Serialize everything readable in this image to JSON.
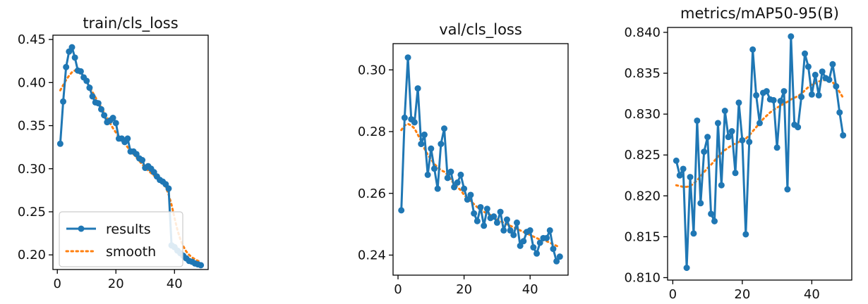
{
  "colors": {
    "results": "#1f77b4",
    "smooth": "#ff7f0e",
    "axes": "#000000",
    "legend_border": "#cccccc"
  },
  "chart_data": [
    {
      "type": "line",
      "title": "train/cls_loss",
      "xlabel": "",
      "ylabel": "",
      "xlim": [
        -1.5,
        51.5
      ],
      "ylim": [
        0.183,
        0.455
      ],
      "xticks": [
        0,
        20,
        40
      ],
      "xtick_labels": [
        "0",
        "20",
        "40"
      ],
      "yticks": [
        0.2,
        0.25,
        0.3,
        0.35,
        0.4,
        0.45
      ],
      "ytick_labels": [
        "0.20",
        "0.25",
        "0.30",
        "0.35",
        "0.40",
        "0.45"
      ],
      "grid": false,
      "legend": {
        "placement": "bottom-left",
        "entries": [
          "results",
          "smooth"
        ]
      },
      "series": [
        {
          "name": "results",
          "style": "line-marker",
          "x": [
            1,
            2,
            3,
            4,
            5,
            6,
            7,
            8,
            9,
            10,
            11,
            12,
            13,
            14,
            15,
            16,
            17,
            18,
            19,
            20,
            21,
            22,
            23,
            24,
            25,
            26,
            27,
            28,
            29,
            30,
            31,
            32,
            33,
            34,
            35,
            36,
            37,
            38,
            39,
            40,
            41,
            42,
            43,
            44,
            45,
            46,
            47,
            48,
            49
          ],
          "y": [
            0.329,
            0.378,
            0.418,
            0.436,
            0.441,
            0.429,
            0.414,
            0.413,
            0.406,
            0.402,
            0.394,
            0.384,
            0.377,
            0.376,
            0.369,
            0.362,
            0.354,
            0.356,
            0.359,
            0.353,
            0.335,
            0.335,
            0.331,
            0.335,
            0.32,
            0.32,
            0.317,
            0.312,
            0.31,
            0.301,
            0.303,
            0.3,
            0.296,
            0.291,
            0.287,
            0.285,
            0.282,
            0.277,
            0.211,
            0.209,
            0.205,
            0.202,
            0.199,
            0.196,
            0.193,
            0.192,
            0.19,
            0.189,
            0.188
          ]
        },
        {
          "name": "smooth",
          "style": "dotted",
          "x": [
            1,
            2,
            3,
            4,
            5,
            6,
            7,
            8,
            9,
            10,
            11,
            12,
            13,
            14,
            15,
            16,
            17,
            18,
            19,
            20,
            21,
            22,
            23,
            24,
            25,
            26,
            27,
            28,
            29,
            30,
            31,
            32,
            33,
            34,
            35,
            36,
            37,
            38,
            39,
            40,
            41,
            42,
            43,
            44,
            45,
            46,
            47,
            48,
            49
          ],
          "y": [
            0.391,
            0.397,
            0.403,
            0.408,
            0.412,
            0.414,
            0.413,
            0.41,
            0.406,
            0.401,
            0.395,
            0.389,
            0.383,
            0.377,
            0.371,
            0.365,
            0.359,
            0.353,
            0.347,
            0.342,
            0.337,
            0.333,
            0.329,
            0.325,
            0.321,
            0.317,
            0.313,
            0.309,
            0.305,
            0.301,
            0.298,
            0.295,
            0.292,
            0.289,
            0.286,
            0.283,
            0.279,
            0.27,
            0.258,
            0.243,
            0.229,
            0.218,
            0.21,
            0.204,
            0.2,
            0.197,
            0.195,
            0.193,
            0.192
          ]
        }
      ]
    },
    {
      "type": "line",
      "title": "val/cls_loss",
      "xlabel": "",
      "ylabel": "",
      "xlim": [
        -1.5,
        51.5
      ],
      "ylim": [
        0.2335,
        0.3085
      ],
      "xticks": [
        0,
        20,
        40
      ],
      "xtick_labels": [
        "0",
        "20",
        "40"
      ],
      "yticks": [
        0.24,
        0.26,
        0.28,
        0.3
      ],
      "ytick_labels": [
        "0.24",
        "0.26",
        "0.28",
        "0.30"
      ],
      "grid": false,
      "series": [
        {
          "name": "results",
          "style": "line-marker",
          "x": [
            1,
            2,
            3,
            4,
            5,
            6,
            7,
            8,
            9,
            10,
            11,
            12,
            13,
            14,
            15,
            16,
            17,
            18,
            19,
            20,
            21,
            22,
            23,
            24,
            25,
            26,
            27,
            28,
            29,
            30,
            31,
            32,
            33,
            34,
            35,
            36,
            37,
            38,
            39,
            40,
            41,
            42,
            43,
            44,
            45,
            46,
            47,
            48,
            49
          ],
          "y": [
            0.2545,
            0.2845,
            0.304,
            0.284,
            0.283,
            0.294,
            0.276,
            0.279,
            0.266,
            0.2745,
            0.268,
            0.2615,
            0.276,
            0.281,
            0.265,
            0.267,
            0.262,
            0.2635,
            0.266,
            0.2615,
            0.258,
            0.2595,
            0.2535,
            0.251,
            0.2555,
            0.2495,
            0.255,
            0.252,
            0.2525,
            0.2505,
            0.254,
            0.248,
            0.2515,
            0.248,
            0.2465,
            0.2505,
            0.243,
            0.2445,
            0.2475,
            0.248,
            0.2425,
            0.2405,
            0.244,
            0.2455,
            0.2455,
            0.248,
            0.242,
            0.238,
            0.2395
          ]
        },
        {
          "name": "smooth",
          "style": "dotted",
          "x": [
            1,
            2,
            3,
            4,
            5,
            6,
            7,
            8,
            9,
            10,
            11,
            12,
            13,
            14,
            15,
            16,
            17,
            18,
            19,
            20,
            21,
            22,
            23,
            24,
            25,
            26,
            27,
            28,
            29,
            30,
            31,
            32,
            33,
            34,
            35,
            36,
            37,
            38,
            39,
            40,
            41,
            42,
            43,
            44,
            45,
            46,
            47,
            48,
            49
          ],
          "y": [
            0.2805,
            0.282,
            0.2825,
            0.282,
            0.281,
            0.279,
            0.277,
            0.2745,
            0.2725,
            0.271,
            0.2695,
            0.2685,
            0.2675,
            0.267,
            0.266,
            0.2645,
            0.263,
            0.262,
            0.261,
            0.2595,
            0.2585,
            0.2575,
            0.2565,
            0.2555,
            0.255,
            0.254,
            0.2535,
            0.253,
            0.2525,
            0.2515,
            0.251,
            0.2505,
            0.25,
            0.2495,
            0.249,
            0.2485,
            0.248,
            0.2475,
            0.247,
            0.2465,
            0.246,
            0.2455,
            0.245,
            0.2448,
            0.2445,
            0.244,
            0.2435,
            0.243,
            0.2425
          ]
        }
      ]
    },
    {
      "type": "line",
      "title": "metrics/mAP50-95(B)",
      "xlabel": "",
      "ylabel": "",
      "xlim": [
        -1.5,
        51.5
      ],
      "ylim": [
        0.8097,
        0.8406
      ],
      "xticks": [
        0,
        20,
        40
      ],
      "xtick_labels": [
        "0",
        "20",
        "40"
      ],
      "yticks": [
        0.81,
        0.815,
        0.82,
        0.825,
        0.83,
        0.835,
        0.84
      ],
      "ytick_labels": [
        "0.810",
        "0.815",
        "0.820",
        "0.825",
        "0.830",
        "0.835",
        "0.840"
      ],
      "grid": false,
      "series": [
        {
          "name": "results",
          "style": "line-marker",
          "x": [
            1,
            2,
            3,
            4,
            5,
            6,
            7,
            8,
            9,
            10,
            11,
            12,
            13,
            14,
            15,
            16,
            17,
            18,
            19,
            20,
            21,
            22,
            23,
            24,
            25,
            26,
            27,
            28,
            29,
            30,
            31,
            32,
            33,
            34,
            35,
            36,
            37,
            38,
            39,
            40,
            41,
            42,
            43,
            44,
            45,
            46,
            47,
            48,
            49
          ],
          "y": [
            0.8243,
            0.8225,
            0.8233,
            0.8112,
            0.8223,
            0.8154,
            0.8292,
            0.8191,
            0.8254,
            0.8272,
            0.8178,
            0.8169,
            0.8289,
            0.8213,
            0.8304,
            0.8272,
            0.8279,
            0.8228,
            0.8314,
            0.8268,
            0.8153,
            0.8266,
            0.8379,
            0.8323,
            0.8289,
            0.8326,
            0.8328,
            0.8318,
            0.8317,
            0.8259,
            0.8316,
            0.8328,
            0.8208,
            0.8395,
            0.8287,
            0.8284,
            0.8321,
            0.8374,
            0.8358,
            0.8324,
            0.8348,
            0.8323,
            0.8352,
            0.8344,
            0.8342,
            0.8361,
            0.8334,
            0.8302,
            0.8274
          ]
        },
        {
          "name": "smooth",
          "style": "dotted",
          "x": [
            1,
            2,
            3,
            4,
            5,
            6,
            7,
            8,
            9,
            10,
            11,
            12,
            13,
            14,
            15,
            16,
            17,
            18,
            19,
            20,
            21,
            22,
            23,
            24,
            25,
            26,
            27,
            28,
            29,
            30,
            31,
            32,
            33,
            34,
            35,
            36,
            37,
            38,
            39,
            40,
            41,
            42,
            43,
            44,
            45,
            46,
            47,
            48,
            49
          ],
          "y": [
            0.8213,
            0.8212,
            0.8211,
            0.8211,
            0.8212,
            0.8215,
            0.8219,
            0.8224,
            0.8229,
            0.8234,
            0.8238,
            0.8243,
            0.8248,
            0.8252,
            0.8256,
            0.8259,
            0.8262,
            0.8264,
            0.8266,
            0.8268,
            0.827,
            0.8274,
            0.8279,
            0.8284,
            0.8289,
            0.8294,
            0.8298,
            0.8302,
            0.8305,
            0.8308,
            0.831,
            0.8313,
            0.8315,
            0.8318,
            0.832,
            0.8322,
            0.8325,
            0.8329,
            0.8333,
            0.8336,
            0.8338,
            0.834,
            0.8341,
            0.8342,
            0.8341,
            0.8339,
            0.8334,
            0.8327,
            0.832
          ]
        }
      ]
    }
  ]
}
